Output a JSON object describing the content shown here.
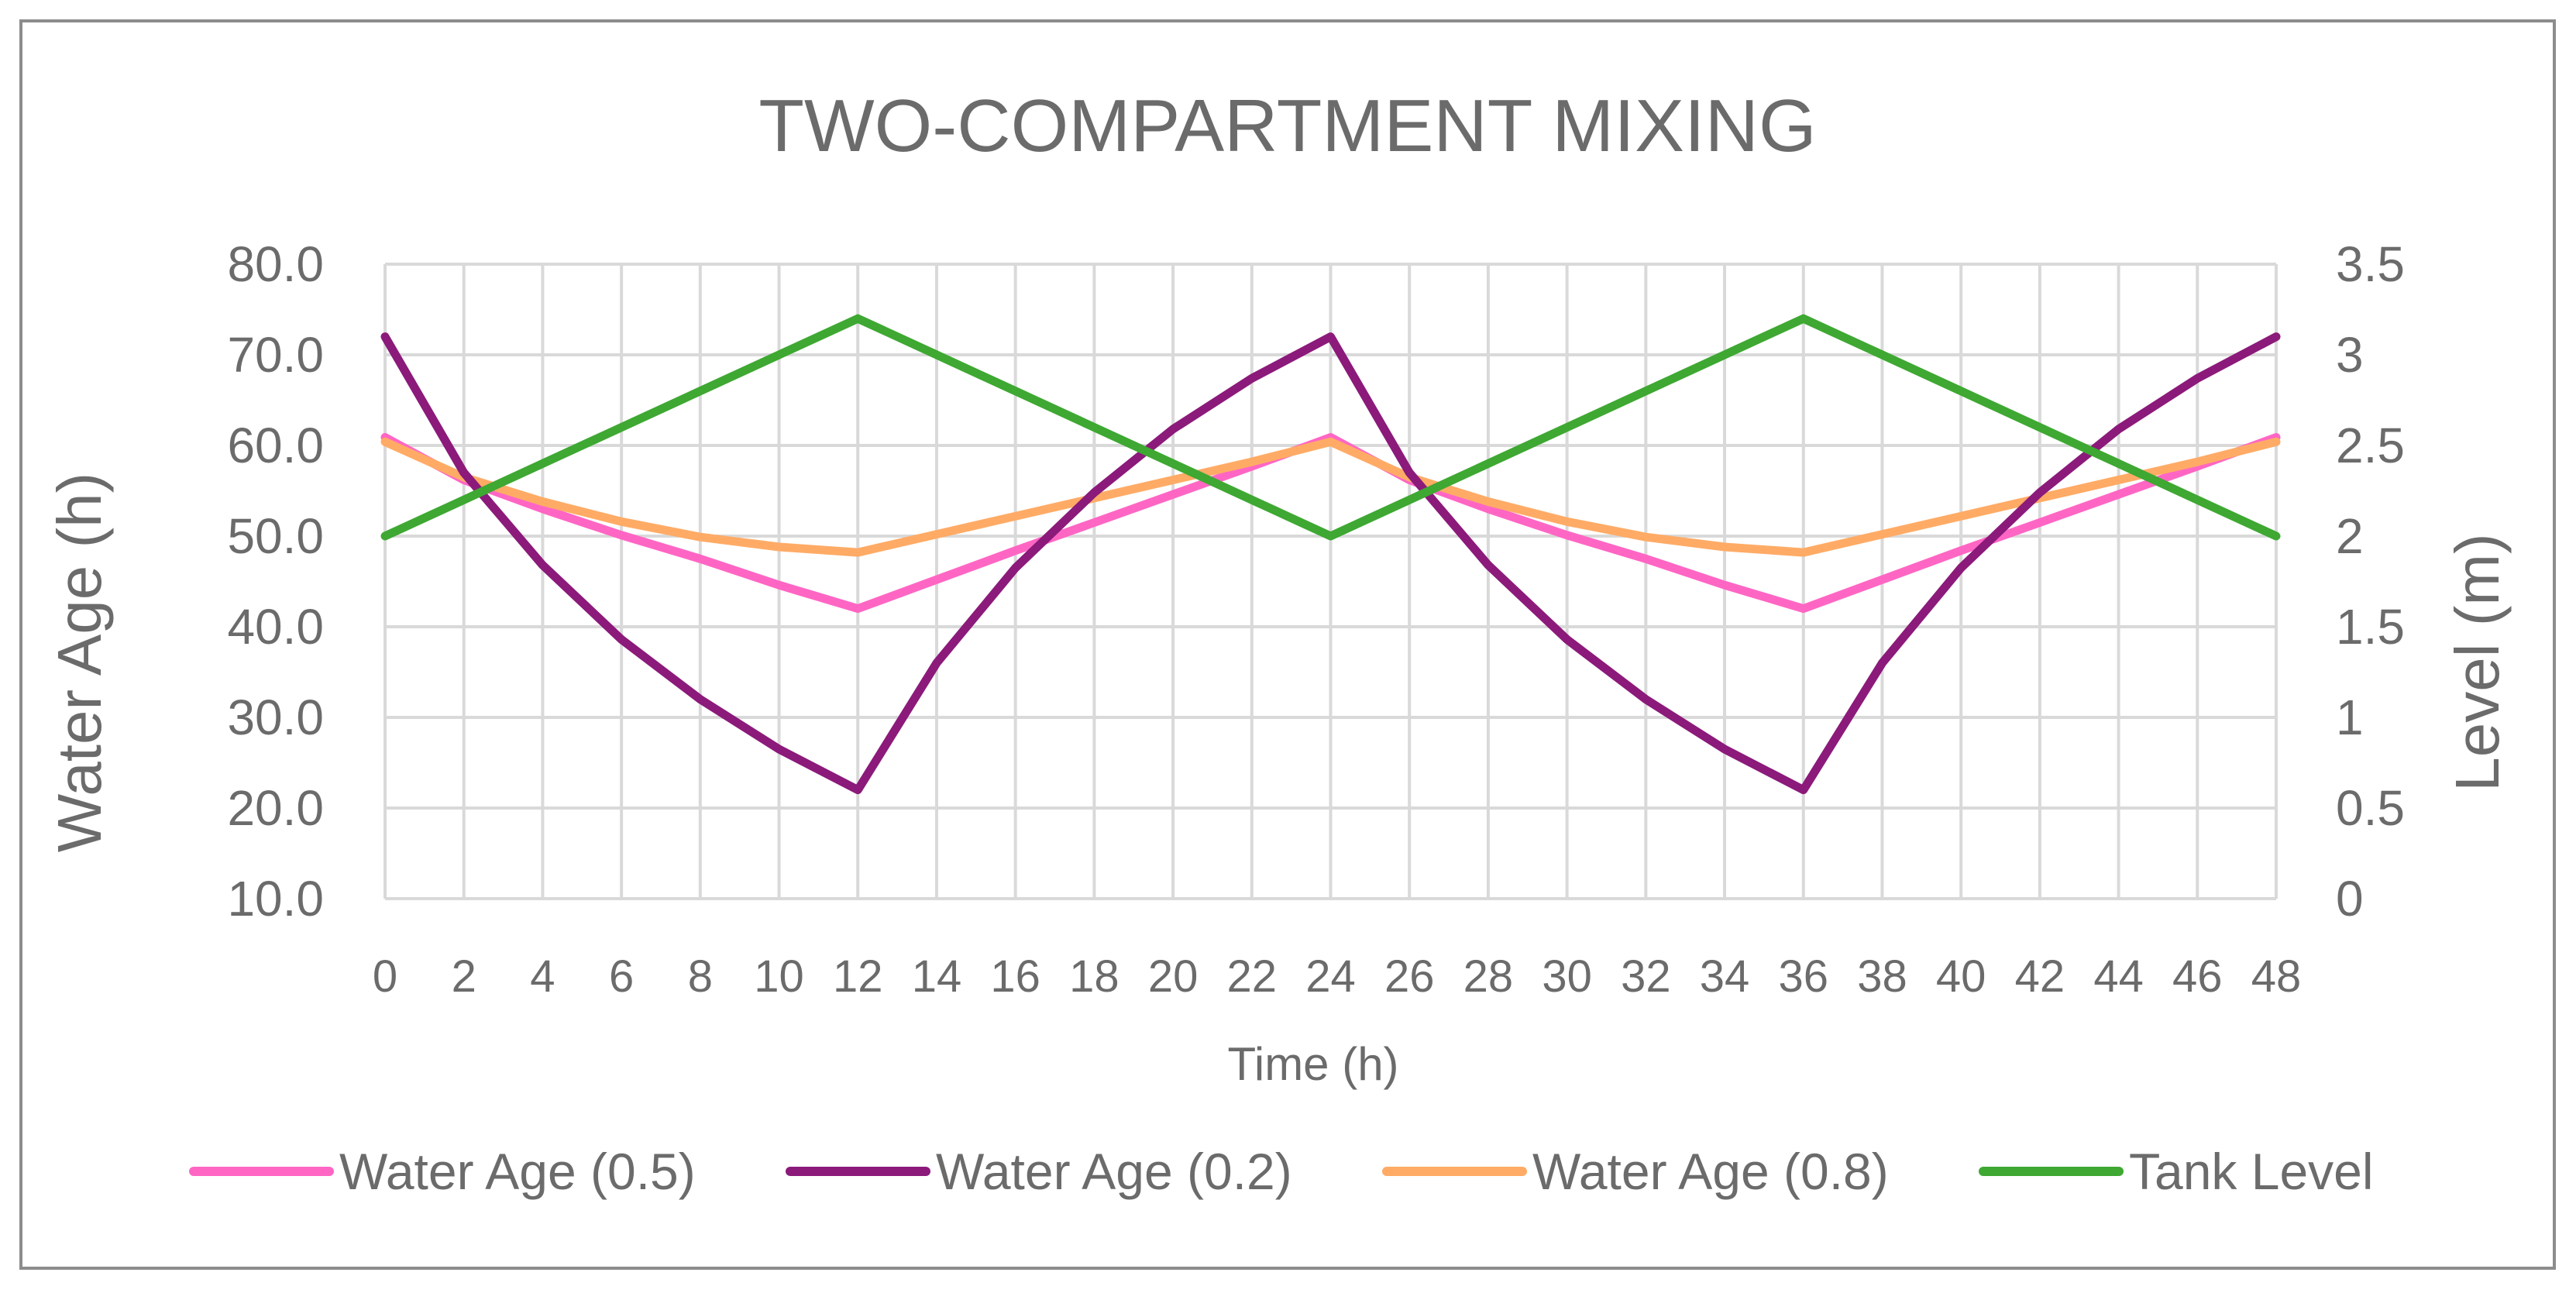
{
  "chart_data": {
    "type": "line",
    "title": "TWO-COMPARTMENT MIXING",
    "xlabel": "Time (h)",
    "ylabel": "Water Age (h)",
    "y2label": "Level (m)",
    "xlim": [
      0,
      48
    ],
    "ylim": [
      10,
      80
    ],
    "y2lim": [
      0,
      3.5
    ],
    "x_ticks": [
      0,
      2,
      4,
      6,
      8,
      10,
      12,
      14,
      16,
      18,
      20,
      22,
      24,
      26,
      28,
      30,
      32,
      34,
      36,
      38,
      40,
      42,
      44,
      46,
      48
    ],
    "y_ticks": [
      "10.0",
      "20.0",
      "30.0",
      "40.0",
      "50.0",
      "60.0",
      "70.0",
      "80.0"
    ],
    "y_tick_values": [
      10,
      20,
      30,
      40,
      50,
      60,
      70,
      80
    ],
    "y2_ticks": [
      "0",
      "0.5",
      "1",
      "1.5",
      "2",
      "2.5",
      "3",
      "3.5"
    ],
    "y2_tick_values": [
      0,
      0.5,
      1,
      1.5,
      2,
      2.5,
      3,
      3.5
    ],
    "grid": true,
    "legend_position": "bottom",
    "x": [
      0,
      2,
      4,
      6,
      8,
      10,
      12,
      14,
      16,
      18,
      20,
      22,
      24,
      26,
      28,
      30,
      32,
      34,
      36,
      38,
      40,
      42,
      44,
      46,
      48
    ],
    "series": [
      {
        "name": "Water Age (0.5)",
        "axis": "left",
        "color": "#ff66c4",
        "values": [
          60.9,
          56.2,
          53.0,
          50.1,
          47.5,
          44.6,
          42.0,
          45.2,
          48.4,
          51.5,
          54.6,
          57.7,
          60.9,
          56.2,
          53.0,
          50.1,
          47.5,
          44.6,
          42.0,
          45.2,
          48.4,
          51.5,
          54.6,
          57.7,
          60.9
        ]
      },
      {
        "name": "Water Age (0.2)",
        "axis": "left",
        "color": "#8b1a7a",
        "values": [
          72.0,
          57.0,
          46.8,
          38.6,
          32.0,
          26.5,
          22.0,
          36.0,
          46.5,
          54.8,
          61.8,
          67.4,
          72.0,
          57.0,
          46.8,
          38.6,
          32.0,
          26.5,
          22.0,
          36.0,
          46.5,
          54.8,
          61.8,
          67.4,
          72.0
        ]
      },
      {
        "name": "Water Age (0.8)",
        "axis": "left",
        "color": "#ffab66",
        "values": [
          60.4,
          56.5,
          53.8,
          51.6,
          49.9,
          48.8,
          48.2,
          50.2,
          52.2,
          54.2,
          56.2,
          58.2,
          60.4,
          56.5,
          53.8,
          51.6,
          49.9,
          48.8,
          48.2,
          50.2,
          52.2,
          54.2,
          56.2,
          58.2,
          60.4
        ]
      },
      {
        "name": "Tank Level",
        "axis": "right",
        "color": "#3ea832",
        "values": [
          2.0,
          2.2,
          2.4,
          2.6,
          2.8,
          3.0,
          3.2,
          3.0,
          2.8,
          2.6,
          2.4,
          2.2,
          2.0,
          2.2,
          2.4,
          2.6,
          2.8,
          3.0,
          3.2,
          3.0,
          2.8,
          2.6,
          2.4,
          2.2,
          2.0
        ]
      }
    ]
  }
}
